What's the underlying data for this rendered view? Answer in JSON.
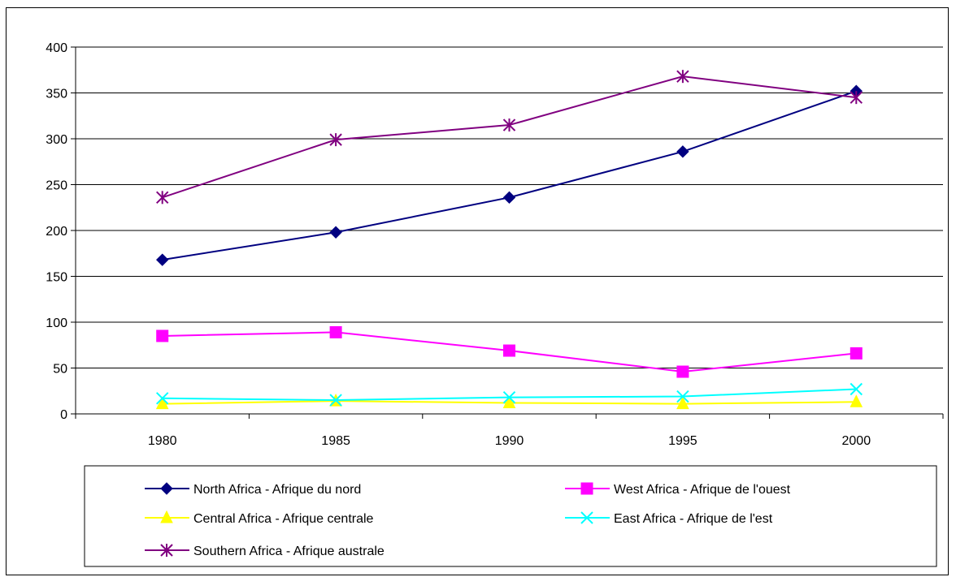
{
  "chart_data": {
    "type": "line",
    "title": "",
    "xlabel": "",
    "ylabel": "",
    "categories": [
      "1980",
      "1985",
      "1990",
      "1995",
      "2000"
    ],
    "ylim": [
      0,
      400
    ],
    "yticks": [
      "0",
      "50",
      "100",
      "150",
      "200",
      "250",
      "300",
      "350",
      "400"
    ],
    "grid": "horizontal",
    "legend_position": "bottom",
    "series": [
      {
        "name": "North Africa - Afrique du nord",
        "values": [
          168,
          198,
          236,
          286,
          352
        ],
        "color": "#000080",
        "marker": "diamond"
      },
      {
        "name": "West Africa - Afrique de l'ouest",
        "values": [
          85,
          89,
          69,
          46,
          66
        ],
        "color": "#ff00ff",
        "marker": "square"
      },
      {
        "name": "Central Africa - Afrique centrale",
        "values": [
          11,
          14,
          12,
          11,
          13
        ],
        "color": "#ffff00",
        "marker": "triangle"
      },
      {
        "name": "East Africa - Afrique de l'est",
        "values": [
          17,
          15,
          18,
          19,
          27
        ],
        "color": "#00ffff",
        "marker": "x"
      },
      {
        "name": "Southern Africa - Afrique australe",
        "values": [
          236,
          299,
          315,
          368,
          345
        ],
        "color": "#800080",
        "marker": "star"
      }
    ]
  }
}
